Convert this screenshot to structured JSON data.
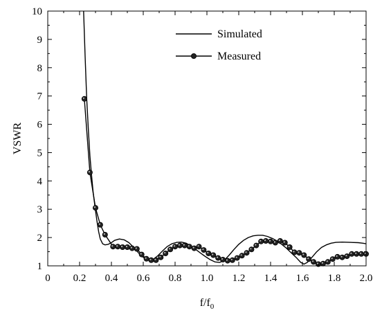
{
  "chart_data": {
    "type": "line",
    "title": "",
    "xlabel": "f/f",
    "xlabel_sub": "0",
    "ylabel": "VSWR",
    "xlim": [
      0,
      2.0
    ],
    "ylim": [
      1,
      10
    ],
    "x_ticks": [
      "0",
      "0.2",
      "0.4",
      "0.6",
      "0.8",
      "1.0",
      "1.2",
      "1.4",
      "1.6",
      "1.8",
      "2.0"
    ],
    "x_tick_values": [
      0,
      0.2,
      0.4,
      0.6,
      0.8,
      1.0,
      1.2,
      1.4,
      1.6,
      1.8,
      2.0
    ],
    "y_ticks": [
      "1",
      "2",
      "3",
      "4",
      "5",
      "6",
      "7",
      "8",
      "9",
      "10"
    ],
    "y_tick_values": [
      1,
      2,
      3,
      4,
      5,
      6,
      7,
      8,
      9,
      10
    ],
    "grid": false,
    "legend_position": "top-right",
    "series": [
      {
        "name": "Simulated",
        "marker": "none",
        "color": "#000000",
        "points": [
          [
            0.225,
            10.0
          ],
          [
            0.235,
            8.4
          ],
          [
            0.245,
            6.9
          ],
          [
            0.255,
            5.8
          ],
          [
            0.265,
            4.9
          ],
          [
            0.275,
            4.2
          ],
          [
            0.285,
            3.6
          ],
          [
            0.3,
            2.95
          ],
          [
            0.31,
            2.55
          ],
          [
            0.32,
            2.2
          ],
          [
            0.33,
            1.95
          ],
          [
            0.345,
            1.78
          ],
          [
            0.36,
            1.74
          ],
          [
            0.38,
            1.76
          ],
          [
            0.4,
            1.82
          ],
          [
            0.42,
            1.9
          ],
          [
            0.45,
            1.95
          ],
          [
            0.48,
            1.92
          ],
          [
            0.51,
            1.82
          ],
          [
            0.54,
            1.65
          ],
          [
            0.57,
            1.46
          ],
          [
            0.6,
            1.3
          ],
          [
            0.63,
            1.2
          ],
          [
            0.66,
            1.22
          ],
          [
            0.69,
            1.35
          ],
          [
            0.72,
            1.52
          ],
          [
            0.75,
            1.68
          ],
          [
            0.78,
            1.78
          ],
          [
            0.81,
            1.83
          ],
          [
            0.84,
            1.84
          ],
          [
            0.87,
            1.8
          ],
          [
            0.9,
            1.7
          ],
          [
            0.93,
            1.58
          ],
          [
            0.96,
            1.45
          ],
          [
            0.99,
            1.33
          ],
          [
            1.02,
            1.22
          ],
          [
            1.05,
            1.14
          ],
          [
            1.08,
            1.12
          ],
          [
            1.11,
            1.2
          ],
          [
            1.14,
            1.38
          ],
          [
            1.17,
            1.58
          ],
          [
            1.2,
            1.76
          ],
          [
            1.23,
            1.9
          ],
          [
            1.26,
            2.0
          ],
          [
            1.29,
            2.06
          ],
          [
            1.32,
            2.08
          ],
          [
            1.35,
            2.08
          ],
          [
            1.38,
            2.04
          ],
          [
            1.41,
            1.97
          ],
          [
            1.44,
            1.88
          ],
          [
            1.47,
            1.76
          ],
          [
            1.5,
            1.62
          ],
          [
            1.53,
            1.46
          ],
          [
            1.56,
            1.3
          ],
          [
            1.59,
            1.12
          ],
          [
            1.61,
            1.06
          ],
          [
            1.63,
            1.12
          ],
          [
            1.66,
            1.3
          ],
          [
            1.69,
            1.5
          ],
          [
            1.72,
            1.65
          ],
          [
            1.75,
            1.74
          ],
          [
            1.78,
            1.8
          ],
          [
            1.81,
            1.83
          ],
          [
            1.85,
            1.84
          ],
          [
            1.9,
            1.83
          ],
          [
            1.95,
            1.82
          ],
          [
            1.98,
            1.8
          ],
          [
            2.0,
            1.78
          ]
        ]
      },
      {
        "name": "Measured",
        "marker": "circle",
        "color": "#000000",
        "points": [
          [
            0.23,
            6.9
          ],
          [
            0.265,
            4.3
          ],
          [
            0.3,
            3.05
          ],
          [
            0.33,
            2.45
          ],
          [
            0.36,
            2.1
          ],
          [
            0.41,
            1.68
          ],
          [
            0.44,
            1.68
          ],
          [
            0.47,
            1.66
          ],
          [
            0.5,
            1.66
          ],
          [
            0.53,
            1.62
          ],
          [
            0.56,
            1.6
          ],
          [
            0.59,
            1.4
          ],
          [
            0.62,
            1.25
          ],
          [
            0.65,
            1.2
          ],
          [
            0.68,
            1.2
          ],
          [
            0.71,
            1.3
          ],
          [
            0.74,
            1.44
          ],
          [
            0.77,
            1.58
          ],
          [
            0.8,
            1.68
          ],
          [
            0.83,
            1.72
          ],
          [
            0.86,
            1.72
          ],
          [
            0.89,
            1.68
          ],
          [
            0.92,
            1.62
          ],
          [
            0.95,
            1.68
          ],
          [
            0.98,
            1.56
          ],
          [
            1.01,
            1.44
          ],
          [
            1.04,
            1.38
          ],
          [
            1.07,
            1.28
          ],
          [
            1.1,
            1.22
          ],
          [
            1.13,
            1.18
          ],
          [
            1.16,
            1.2
          ],
          [
            1.19,
            1.28
          ],
          [
            1.22,
            1.36
          ],
          [
            1.25,
            1.46
          ],
          [
            1.28,
            1.58
          ],
          [
            1.31,
            1.72
          ],
          [
            1.34,
            1.86
          ],
          [
            1.37,
            1.88
          ],
          [
            1.4,
            1.86
          ],
          [
            1.43,
            1.82
          ],
          [
            1.46,
            1.88
          ],
          [
            1.49,
            1.82
          ],
          [
            1.52,
            1.66
          ],
          [
            1.55,
            1.48
          ],
          [
            1.58,
            1.46
          ],
          [
            1.61,
            1.38
          ],
          [
            1.64,
            1.24
          ],
          [
            1.67,
            1.14
          ],
          [
            1.7,
            1.06
          ],
          [
            1.73,
            1.08
          ],
          [
            1.76,
            1.14
          ],
          [
            1.79,
            1.24
          ],
          [
            1.82,
            1.32
          ],
          [
            1.85,
            1.3
          ],
          [
            1.88,
            1.34
          ],
          [
            1.91,
            1.42
          ],
          [
            1.94,
            1.42
          ],
          [
            1.97,
            1.42
          ],
          [
            2.0,
            1.42
          ]
        ]
      }
    ]
  }
}
